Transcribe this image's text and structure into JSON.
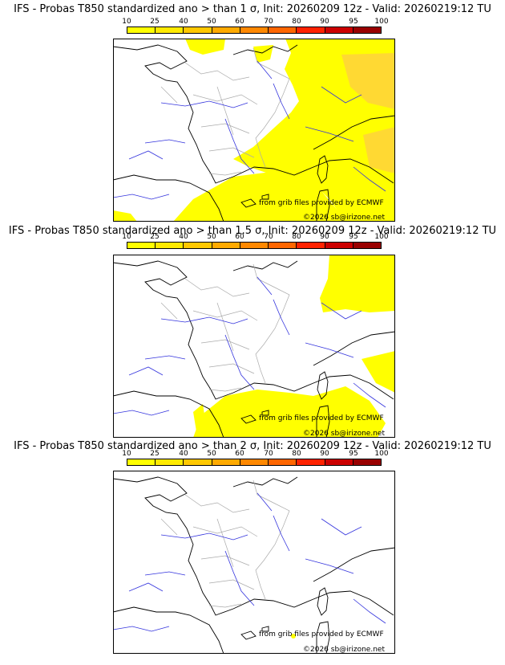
{
  "legend": {
    "ticks": [
      "10",
      "25",
      "40",
      "50",
      "60",
      "70",
      "80",
      "90",
      "95",
      "100"
    ],
    "colors": [
      "#ffff00",
      "#ffea00",
      "#ffc800",
      "#ffaa00",
      "#ff8800",
      "#ff6600",
      "#ff2200",
      "#cc0000",
      "#990000",
      "#660000"
    ]
  },
  "map": {
    "sea_color": "#ffffff",
    "coast_color": "#000000",
    "river_color": "#3333dd",
    "border_color": "#aaaaaa",
    "prob_color": "#ffff00",
    "prob_color_2": "#ffd040"
  },
  "panels": [
    {
      "title": "IFS - Probas T850  standardized ano > than 1 σ, Init: 20260209 12z - Valid: 20260219:12 TU",
      "credit_data": "from grib files provided by ECMWF",
      "credit_copy": "©2026 sb@irizone.net"
    },
    {
      "title": "IFS - Probas T850  standardized ano > than 1.5 σ, Init: 20260209 12z - Valid: 20260219:12 TU",
      "credit_data": "from grib files provided by ECMWF",
      "credit_copy": "©2026 sb@irizone.net"
    },
    {
      "title": "IFS - Probas T850  standardized ano > than 2 σ, Init: 20260209 12z - Valid: 20260219:12 TU",
      "credit_data": "from grib files provided by ECMWF",
      "credit_copy": "©2026 sb@irizone.net"
    }
  ]
}
